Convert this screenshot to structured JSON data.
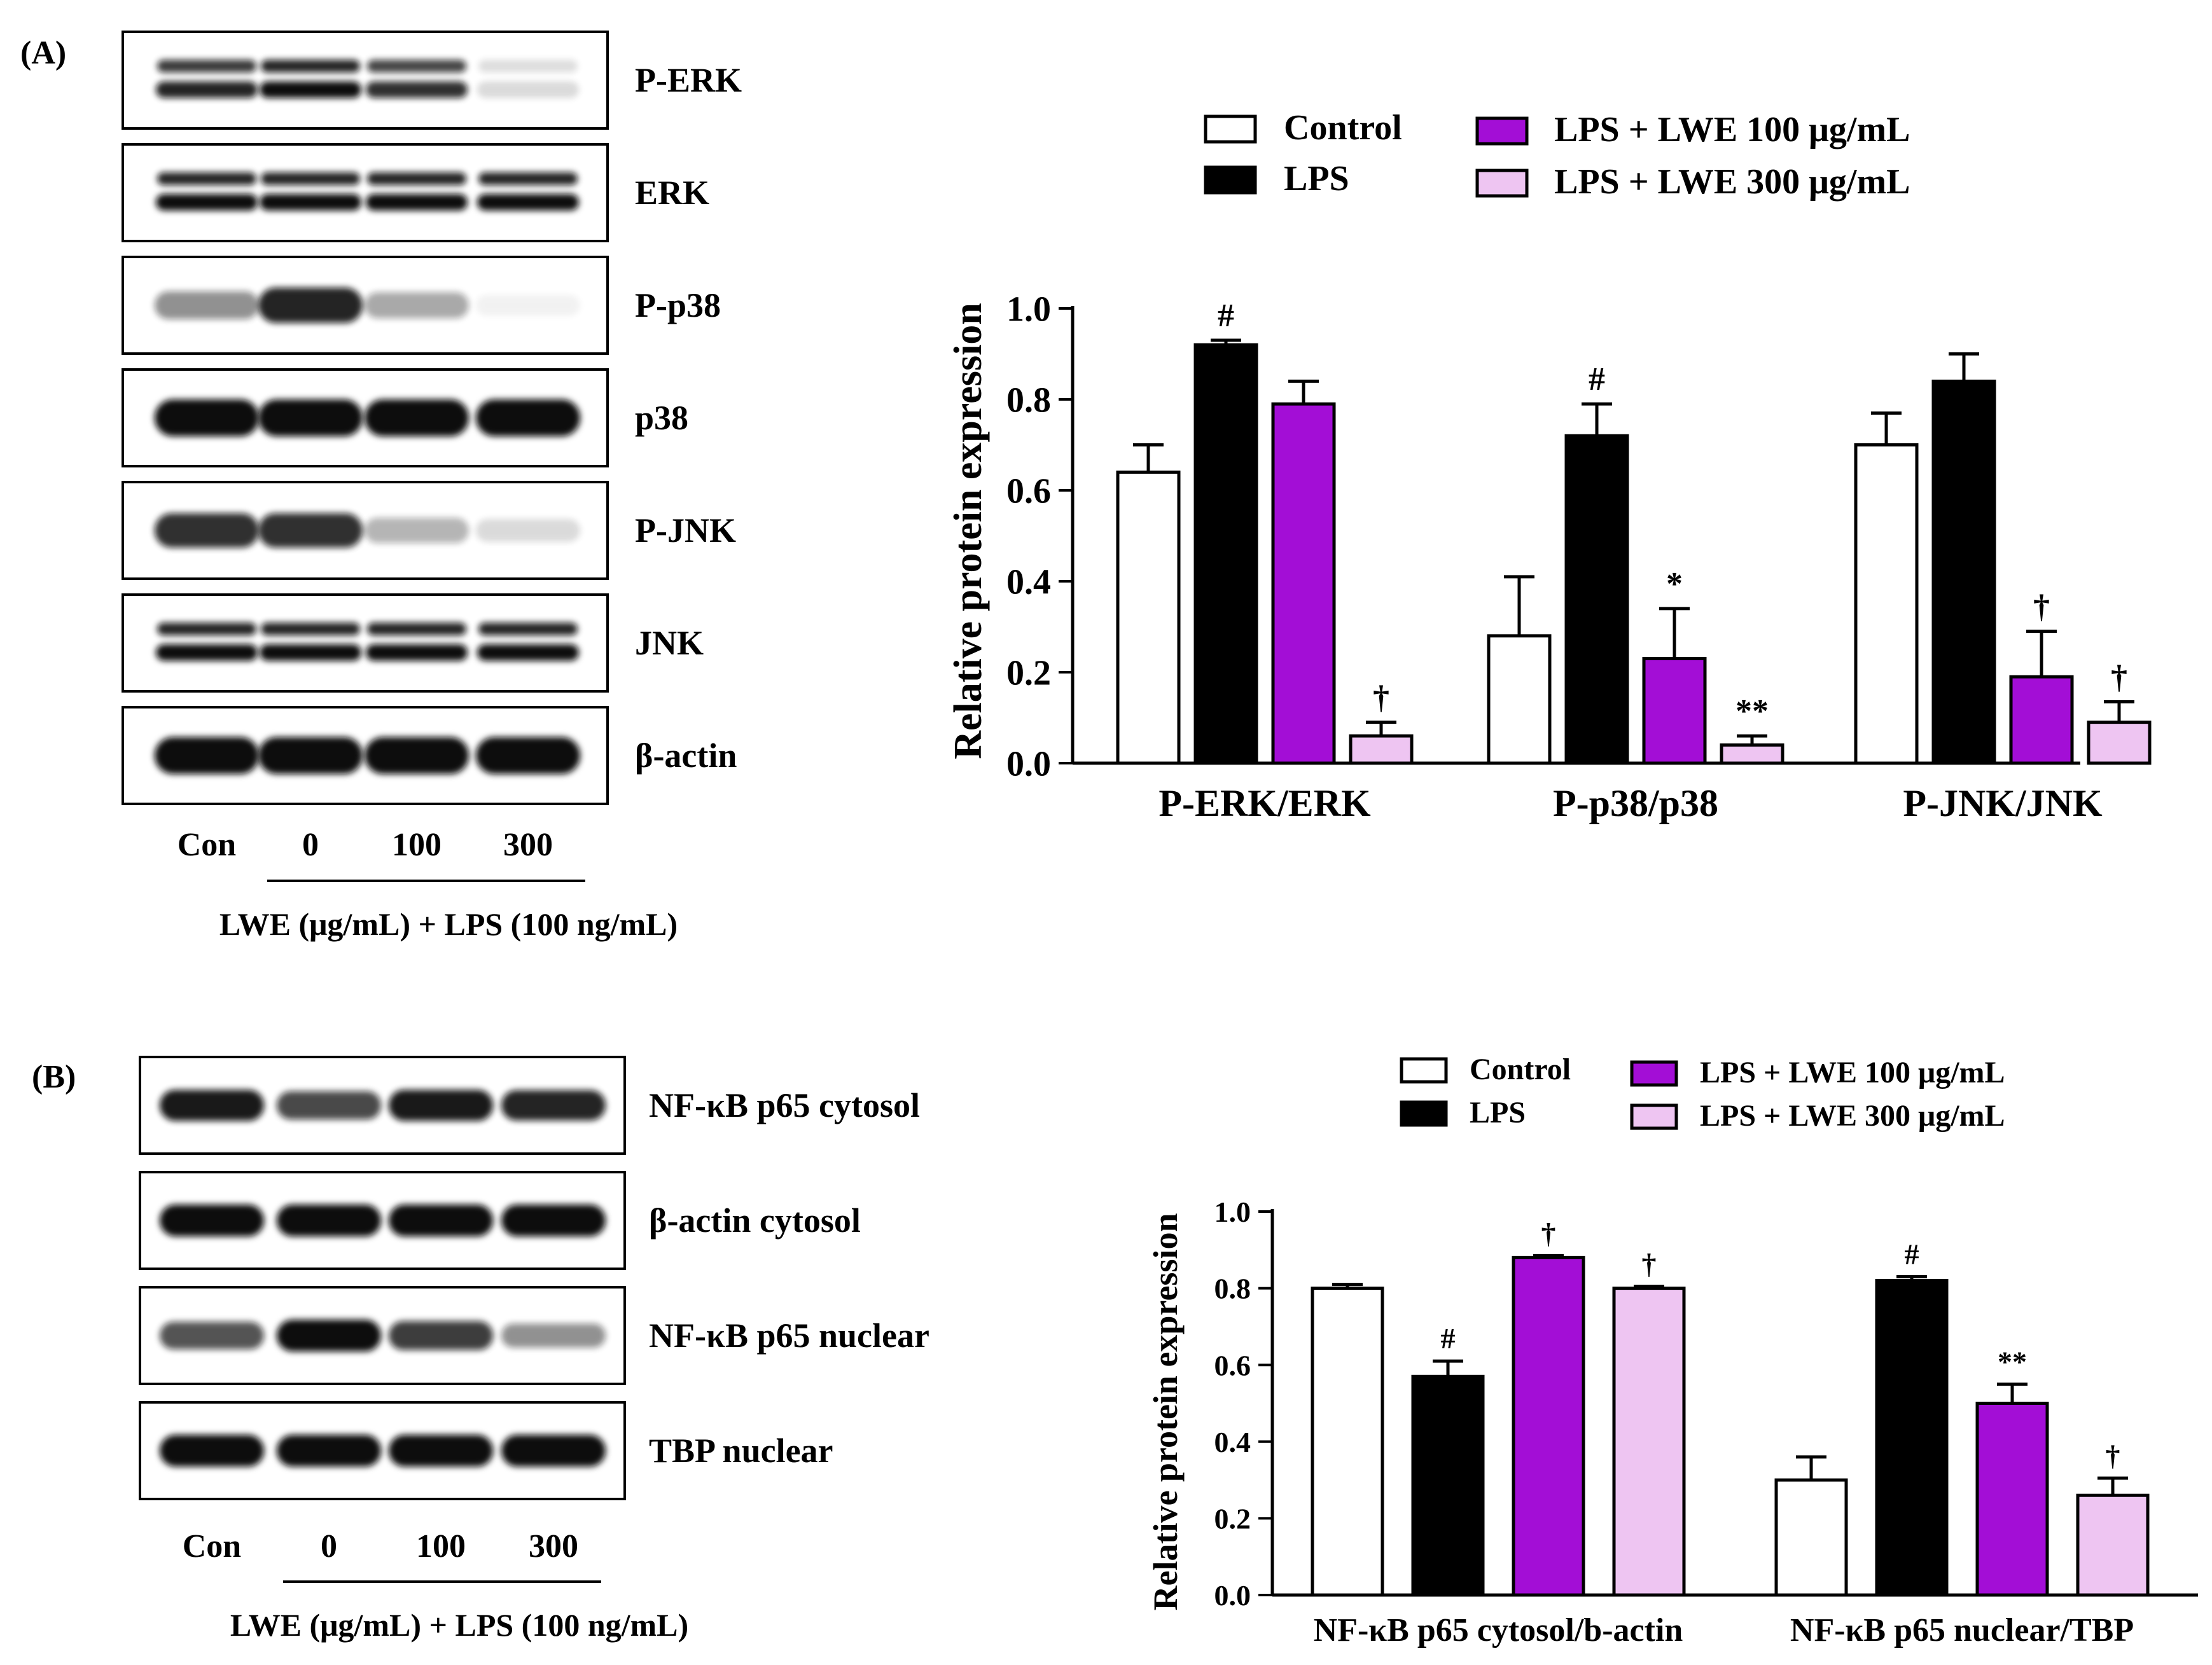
{
  "colors": {
    "control": "#ffffff",
    "lps": "#000000",
    "lwe100": "#a30ed6",
    "lwe300": "#eec5f2",
    "band": "#0a0a0a"
  },
  "panelA": {
    "label": "(A)",
    "blot": {
      "rows": [
        {
          "name": "P-ERK",
          "bands": "double",
          "intensity": [
            0.9,
            1.0,
            0.85,
            0.15
          ]
        },
        {
          "name": "ERK",
          "bands": "double",
          "intensity": [
            1.0,
            1.0,
            1.0,
            1.0
          ]
        },
        {
          "name": "P-p38",
          "bands": "single",
          "intensity": [
            0.45,
            0.9,
            0.35,
            0.05
          ]
        },
        {
          "name": "p38",
          "bands": "single",
          "intensity": [
            1.0,
            1.0,
            1.0,
            1.0
          ]
        },
        {
          "name": "P-JNK",
          "bands": "single",
          "intensity": [
            0.85,
            0.85,
            0.3,
            0.15
          ]
        },
        {
          "name": "JNK",
          "bands": "double",
          "intensity": [
            1.0,
            1.0,
            1.0,
            1.0
          ]
        },
        {
          "name": "β-actin",
          "bands": "single",
          "intensity": [
            1.0,
            1.0,
            1.0,
            1.0
          ]
        }
      ],
      "lanes": [
        "Con",
        "0",
        "100",
        "300"
      ],
      "treatment": "LWE (μg/mL) + LPS (100 ng/mL)"
    },
    "legend": [
      "Control",
      "LPS",
      "LPS + LWE 100 μg/mL",
      "LPS + LWE 300 μg/mL"
    ],
    "chart_data": {
      "type": "bar",
      "title": "",
      "xlabel": "",
      "ylabel": "Relative protein expression",
      "ylim": [
        0,
        1.0
      ],
      "yticks": [
        "0.0",
        "0.2",
        "0.4",
        "0.6",
        "0.8",
        "1.0"
      ],
      "categories": [
        "P-ERK/ERK",
        "P-p38/p38",
        "P-JNK/JNK"
      ],
      "series": [
        {
          "name": "Control",
          "values": [
            0.64,
            0.28,
            0.7
          ],
          "errors": [
            0.06,
            0.13,
            0.07
          ],
          "annotations": [
            "",
            "",
            ""
          ]
        },
        {
          "name": "LPS",
          "values": [
            0.92,
            0.72,
            0.84
          ],
          "errors": [
            0.01,
            0.07,
            0.06
          ],
          "annotations": [
            "#",
            "#",
            ""
          ]
        },
        {
          "name": "LPS + LWE 100 μg/mL",
          "values": [
            0.79,
            0.23,
            0.19
          ],
          "errors": [
            0.05,
            0.11,
            0.1
          ],
          "annotations": [
            "",
            "*",
            "†"
          ]
        },
        {
          "name": "LPS + LWE 300 μg/mL",
          "values": [
            0.06,
            0.04,
            0.09
          ],
          "errors": [
            0.03,
            0.02,
            0.045
          ],
          "annotations": [
            "†",
            "**",
            "†"
          ]
        }
      ]
    }
  },
  "panelB": {
    "label": "(B)",
    "blot": {
      "rows": [
        {
          "name": "NF-κB p65 cytosol",
          "bands": "single",
          "intensity": [
            0.95,
            0.75,
            0.95,
            0.9
          ]
        },
        {
          "name": "β-actin cytosol",
          "bands": "single",
          "intensity": [
            1.0,
            1.0,
            1.0,
            1.0
          ]
        },
        {
          "name": "NF-κB p65 nuclear",
          "bands": "single",
          "intensity": [
            0.7,
            1.0,
            0.8,
            0.45
          ]
        },
        {
          "name": "TBP nuclear",
          "bands": "single",
          "intensity": [
            1.0,
            1.0,
            1.0,
            1.0
          ]
        }
      ],
      "lanes": [
        "Con",
        "0",
        "100",
        "300"
      ],
      "treatment": "LWE (μg/mL) + LPS (100 ng/mL)"
    },
    "legend": [
      "Control",
      "LPS",
      "LPS + LWE 100 μg/mL",
      "LPS + LWE 300 μg/mL"
    ],
    "chart_data": {
      "type": "bar",
      "title": "",
      "xlabel": "",
      "ylabel": "Relative protein expression",
      "ylim": [
        0,
        1.0
      ],
      "yticks": [
        "0.0",
        "0.2",
        "0.4",
        "0.6",
        "0.8",
        "1.0"
      ],
      "categories": [
        "NF-κB p65 cytosol/b-actin",
        "NF-κB p65 nuclear/TBP"
      ],
      "series": [
        {
          "name": "Control",
          "values": [
            0.8,
            0.3
          ],
          "errors": [
            0.01,
            0.06
          ],
          "annotations": [
            "",
            ""
          ]
        },
        {
          "name": "LPS",
          "values": [
            0.57,
            0.82
          ],
          "errors": [
            0.04,
            0.01
          ],
          "annotations": [
            "#",
            "#"
          ]
        },
        {
          "name": "LPS + LWE 100 μg/mL",
          "values": [
            0.88,
            0.5
          ],
          "errors": [
            0.005,
            0.05
          ],
          "annotations": [
            "†",
            "**"
          ]
        },
        {
          "name": "LPS + LWE 300 μg/mL",
          "values": [
            0.8,
            0.26
          ],
          "errors": [
            0.005,
            0.045
          ],
          "annotations": [
            "†",
            "†"
          ]
        }
      ]
    }
  }
}
